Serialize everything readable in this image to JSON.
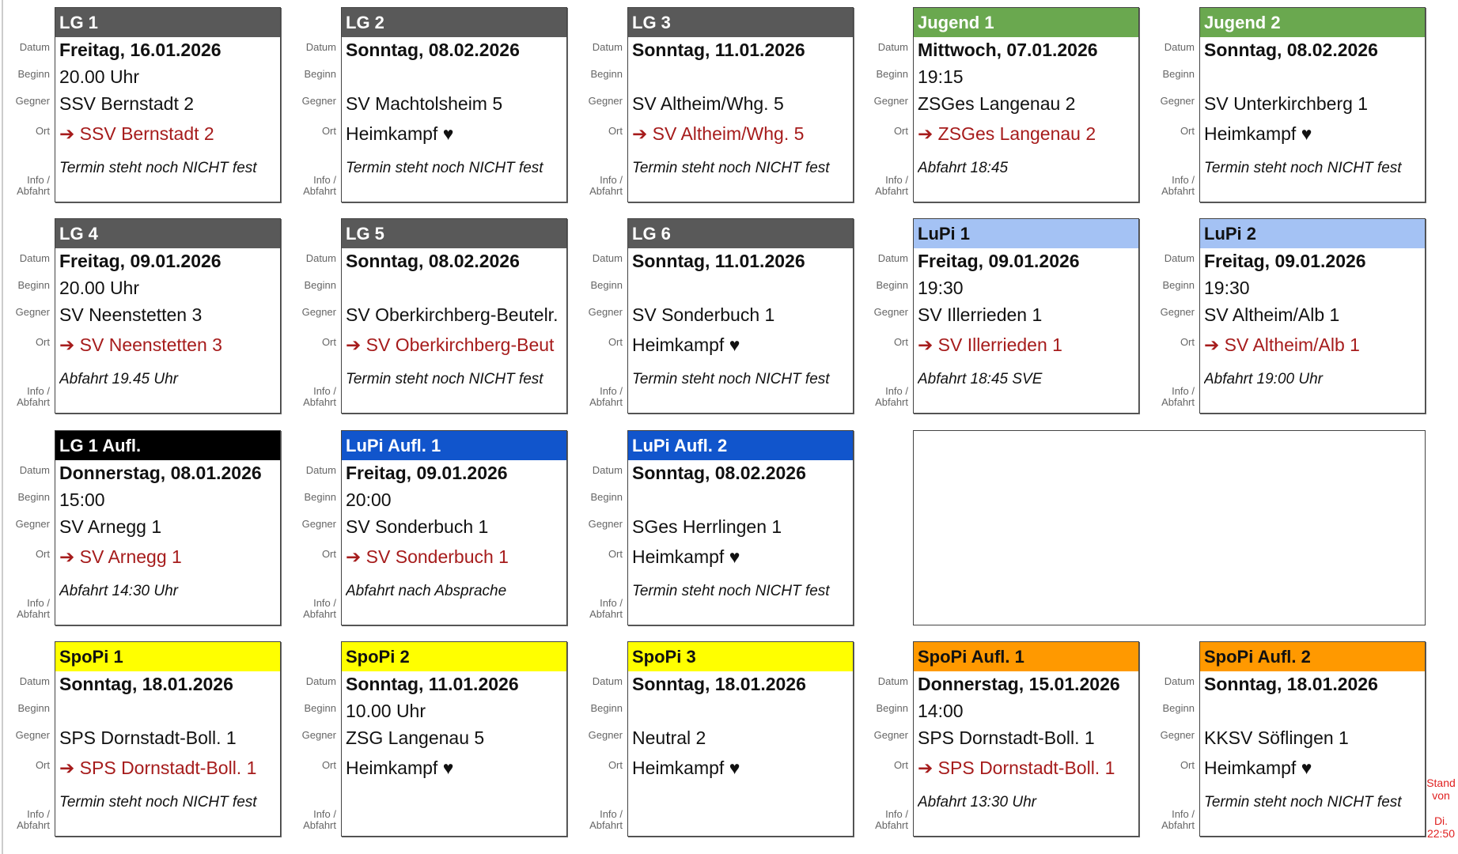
{
  "labels": {
    "datum": "Datum",
    "beginn": "Beginn",
    "gegner": "Gegner",
    "ort": "Ort",
    "info1": "Info /",
    "info2": "Abfahrt"
  },
  "colors": {
    "gray": "#595959",
    "green": "#6aa84f",
    "lightblue": "#a4c2f4",
    "black": "#000000",
    "blue": "#1155cc",
    "yellow": "#ffff00",
    "orange": "#ff9900",
    "away": "#a61c1c"
  },
  "cards": [
    {
      "team": "LG 1",
      "color": "gray",
      "date": "Freitag, 16.01.2026",
      "begin": "20.00 Uhr",
      "opponent": "SSV Bernstadt 2",
      "location": "➔ SSV Bernstadt 2",
      "away": true,
      "info": "Termin steht noch NICHT fest"
    },
    {
      "team": "LG 2",
      "color": "gray",
      "date": "Sonntag, 08.02.2026",
      "begin": "",
      "opponent": "SV Machtolsheim 5",
      "location": "Heimkampf ♥",
      "away": false,
      "info": "Termin steht noch NICHT fest"
    },
    {
      "team": "LG 3",
      "color": "gray",
      "date": "Sonntag, 11.01.2026",
      "begin": "",
      "opponent": "SV Altheim/Whg. 5",
      "location": "➔ SV Altheim/Whg. 5",
      "away": true,
      "info": "Termin steht noch NICHT fest"
    },
    {
      "team": "Jugend 1",
      "color": "green",
      "date": "Mittwoch, 07.01.2026",
      "begin": "19:15",
      "opponent": "ZSGes Langenau 2",
      "location": "➔ ZSGes Langenau 2",
      "away": true,
      "info": "Abfahrt 18:45"
    },
    {
      "team": "Jugend 2",
      "color": "green",
      "date": "Sonntag, 08.02.2026",
      "begin": "",
      "opponent": "SV Unterkirchberg 1",
      "location": "Heimkampf ♥",
      "away": false,
      "info": "Termin steht noch NICHT fest"
    },
    {
      "team": "LG 4",
      "color": "gray",
      "date": "Freitag, 09.01.2026",
      "begin": "20.00 Uhr",
      "opponent": "SV Neenstetten 3",
      "location": "➔ SV Neenstetten 3",
      "away": true,
      "info": "Abfahrt 19.45 Uhr"
    },
    {
      "team": "LG 5",
      "color": "gray",
      "date": "Sonntag, 08.02.2026",
      "begin": "",
      "opponent": "SV Oberkirchberg-Beutelr.",
      "location": "➔ SV Oberkirchberg-Beut",
      "away": true,
      "info": "Termin steht noch NICHT fest"
    },
    {
      "team": "LG 6",
      "color": "gray",
      "date": "Sonntag, 11.01.2026",
      "begin": "",
      "opponent": "SV Sonderbuch 1",
      "location": "Heimkampf ♥",
      "away": false,
      "info": "Termin steht noch NICHT fest"
    },
    {
      "team": "LuPi 1",
      "color": "lightblue",
      "dark": true,
      "date": "Freitag, 09.01.2026",
      "begin": "19:30",
      "opponent": "SV Illerrieden 1",
      "location": "➔ SV Illerrieden 1",
      "away": true,
      "info": "Abfahrt 18:45 SVE"
    },
    {
      "team": "LuPi 2",
      "color": "lightblue",
      "dark": true,
      "date": "Freitag, 09.01.2026",
      "begin": "19:30",
      "opponent": "SV Altheim/Alb 1",
      "location": "➔ SV Altheim/Alb 1",
      "away": true,
      "info": "Abfahrt 19:00 Uhr"
    },
    {
      "team": "LG 1 Aufl.",
      "color": "black",
      "date": "Donnerstag, 08.01.2026",
      "begin": "15:00",
      "opponent": "SV Arnegg 1",
      "location": "➔ SV Arnegg 1",
      "away": true,
      "info": "Abfahrt 14:30 Uhr"
    },
    {
      "team": "LuPi Aufl. 1",
      "color": "blue",
      "date": "Freitag, 09.01.2026",
      "begin": "20:00",
      "opponent": "SV Sonderbuch 1",
      "location": "➔ SV Sonderbuch 1",
      "away": true,
      "info": "Abfahrt nach Absprache"
    },
    {
      "team": "LuPi Aufl. 2",
      "color": "blue",
      "date": "Sonntag, 08.02.2026",
      "begin": "",
      "opponent": "SGes Herrlingen 1",
      "location": "Heimkampf ♥",
      "away": false,
      "info": "Termin steht noch NICHT fest"
    },
    null,
    null,
    {
      "team": "SpoPi 1",
      "color": "yellow",
      "dark": true,
      "date": "Sonntag, 18.01.2026",
      "begin": "",
      "opponent": "SPS Dornstadt-Boll. 1",
      "location": "➔ SPS Dornstadt-Boll. 1",
      "away": true,
      "info": "Termin steht noch NICHT fest"
    },
    {
      "team": "SpoPi 2",
      "color": "yellow",
      "dark": true,
      "date": "Sonntag, 11.01.2026",
      "begin": "10.00 Uhr",
      "opponent": "ZSG Langenau 5",
      "location": "Heimkampf ♥",
      "away": false,
      "info": ""
    },
    {
      "team": "SpoPi 3",
      "color": "yellow",
      "dark": true,
      "date": "Sonntag, 18.01.2026",
      "begin": "",
      "opponent": "Neutral 2",
      "location": "Heimkampf ♥",
      "away": false,
      "info": ""
    },
    {
      "team": "SpoPi Aufl. 1",
      "color": "orange",
      "dark": true,
      "date": "Donnerstag, 15.01.2026",
      "begin": "14:00",
      "opponent": "SPS Dornstadt-Boll. 1",
      "location": "➔ SPS Dornstadt-Boll. 1",
      "away": true,
      "info": "Abfahrt 13:30 Uhr"
    },
    {
      "team": "SpoPi Aufl. 2",
      "color": "orange",
      "dark": true,
      "date": "Sonntag, 18.01.2026",
      "begin": "",
      "opponent": "KKSV Söflingen 1",
      "location": "Heimkampf ♥",
      "away": false,
      "info": "Termin steht noch NICHT fest"
    }
  ],
  "stand": {
    "line1": "Stand",
    "line2": "von",
    "line3": "Di.",
    "line4": "22:50"
  }
}
